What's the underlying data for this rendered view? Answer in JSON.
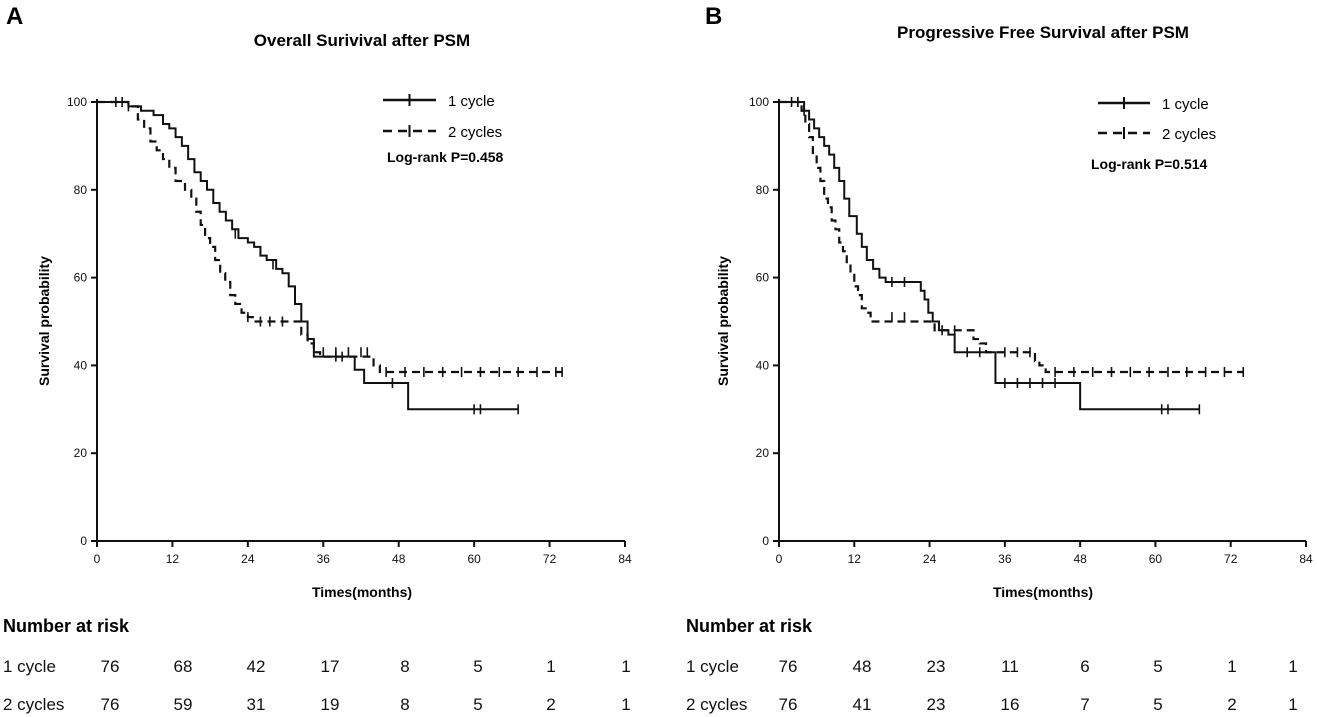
{
  "colors": {
    "line": "#111111",
    "background": "#ffffff"
  },
  "chart_data": [
    {
      "type": "line",
      "panel": "A",
      "title": "Overall Surivival after PSM",
      "xlabel": "Times(months)",
      "ylabel": "Survival probability",
      "xlim": [
        0,
        84
      ],
      "ylim": [
        0,
        100
      ],
      "xticks": [
        0,
        12,
        24,
        36,
        48,
        60,
        72,
        84
      ],
      "yticks": [
        0,
        20,
        40,
        60,
        80,
        100
      ],
      "legend_position": "top-right",
      "annotation": "Log-rank P=0.458",
      "series": [
        {
          "name": "1 cycle",
          "style": "solid",
          "steps": [
            [
              0,
              100
            ],
            [
              3,
              100
            ],
            [
              5,
              99
            ],
            [
              7,
              98
            ],
            [
              9,
              97
            ],
            [
              10.5,
              95
            ],
            [
              11.5,
              94
            ],
            [
              12.5,
              92
            ],
            [
              13.5,
              90
            ],
            [
              14.5,
              87
            ],
            [
              15.5,
              84
            ],
            [
              16.5,
              82
            ],
            [
              17.5,
              80
            ],
            [
              18.5,
              77
            ],
            [
              19.5,
              75
            ],
            [
              20.5,
              73
            ],
            [
              21.5,
              71
            ],
            [
              22.5,
              69
            ],
            [
              24,
              68
            ],
            [
              25,
              67
            ],
            [
              26,
              65
            ],
            [
              27,
              64
            ],
            [
              28.5,
              62
            ],
            [
              29.5,
              61
            ],
            [
              30.5,
              58
            ],
            [
              31.5,
              54
            ],
            [
              32.5,
              50
            ],
            [
              33.5,
              46
            ],
            [
              34.5,
              42
            ],
            [
              40,
              42
            ],
            [
              41,
              39
            ],
            [
              42.5,
              36
            ],
            [
              48.5,
              36
            ],
            [
              49.5,
              30
            ],
            [
              67,
              30
            ]
          ],
          "censored": [
            [
              3,
              100
            ],
            [
              5,
              99
            ],
            [
              22,
              70
            ],
            [
              26,
              66
            ],
            [
              28,
              63
            ],
            [
              38,
              42
            ],
            [
              39,
              42
            ],
            [
              47,
              36
            ],
            [
              60,
              30
            ],
            [
              61,
              30
            ],
            [
              67,
              30
            ]
          ]
        },
        {
          "name": "2 cycles",
          "style": "dashed",
          "steps": [
            [
              0,
              100
            ],
            [
              4,
              100
            ],
            [
              5,
              99
            ],
            [
              6.5,
              96
            ],
            [
              7.5,
              94
            ],
            [
              8.5,
              91
            ],
            [
              9.5,
              89
            ],
            [
              10.5,
              87
            ],
            [
              11.5,
              85
            ],
            [
              12.5,
              82
            ],
            [
              14,
              80
            ],
            [
              15,
              78
            ],
            [
              15.8,
              75
            ],
            [
              16.5,
              72
            ],
            [
              17.2,
              69
            ],
            [
              18,
              67
            ],
            [
              18.8,
              64
            ],
            [
              19.6,
              61
            ],
            [
              20.4,
              59
            ],
            [
              21.2,
              56
            ],
            [
              22,
              54
            ],
            [
              23,
              52
            ],
            [
              24,
              51
            ],
            [
              25,
              50
            ],
            [
              31,
              50
            ],
            [
              32.5,
              47
            ],
            [
              33.5,
              45
            ],
            [
              34.5,
              43
            ],
            [
              35.5,
              42
            ],
            [
              43,
              42
            ],
            [
              44,
              40
            ],
            [
              45,
              38.5
            ],
            [
              74,
              38.5
            ]
          ],
          "censored": [
            [
              4,
              100
            ],
            [
              24,
              51
            ],
            [
              26,
              50
            ],
            [
              27.5,
              50
            ],
            [
              29.5,
              50
            ],
            [
              36,
              43
            ],
            [
              38,
              43
            ],
            [
              40,
              43
            ],
            [
              42,
              43
            ],
            [
              43,
              43
            ],
            [
              46,
              38.5
            ],
            [
              49,
              38.5
            ],
            [
              52,
              38.5
            ],
            [
              55,
              38.5
            ],
            [
              58,
              38.5
            ],
            [
              61,
              38.5
            ],
            [
              64,
              38.5
            ],
            [
              67,
              38.5
            ],
            [
              70,
              38.5
            ],
            [
              73,
              38.5
            ],
            [
              74,
              38.5
            ]
          ]
        }
      ]
    },
    {
      "type": "line",
      "panel": "B",
      "title": "Progressive Free Survival after PSM",
      "xlabel": "Times(months)",
      "ylabel": "Survival probability",
      "xlim": [
        0,
        84
      ],
      "ylim": [
        0,
        100
      ],
      "xticks": [
        0,
        12,
        24,
        36,
        48,
        60,
        72,
        84
      ],
      "yticks": [
        0,
        20,
        40,
        60,
        80,
        100
      ],
      "legend_position": "top-right",
      "annotation": "Log-rank P=0.514",
      "series": [
        {
          "name": "1 cycle",
          "style": "solid",
          "steps": [
            [
              0,
              100
            ],
            [
              3,
              100
            ],
            [
              4,
              98
            ],
            [
              4.8,
              96
            ],
            [
              5.6,
              94
            ],
            [
              6.4,
              92
            ],
            [
              7.2,
              90
            ],
            [
              8,
              88
            ],
            [
              8.8,
              85
            ],
            [
              9.6,
              82
            ],
            [
              10.4,
              78
            ],
            [
              11.2,
              74
            ],
            [
              12.4,
              70
            ],
            [
              13.2,
              67
            ],
            [
              14,
              64
            ],
            [
              15,
              62
            ],
            [
              16,
              60
            ],
            [
              17,
              59
            ],
            [
              22,
              59
            ],
            [
              22.6,
              57
            ],
            [
              23.2,
              55
            ],
            [
              23.8,
              52
            ],
            [
              24.5,
              50
            ],
            [
              25.5,
              48
            ],
            [
              27,
              47
            ],
            [
              28,
              43
            ],
            [
              34,
              43
            ],
            [
              34.5,
              36
            ],
            [
              47.5,
              36
            ],
            [
              48,
              30
            ],
            [
              67,
              30
            ]
          ],
          "censored": [
            [
              3,
              100
            ],
            [
              4,
              98
            ],
            [
              18,
              59
            ],
            [
              20,
              59
            ],
            [
              30,
              43
            ],
            [
              32,
              43
            ],
            [
              36,
              36
            ],
            [
              38,
              36
            ],
            [
              40,
              36
            ],
            [
              42,
              36
            ],
            [
              44,
              36
            ],
            [
              61,
              30
            ],
            [
              62,
              30
            ],
            [
              67,
              30
            ]
          ]
        },
        {
          "name": "2 cycles",
          "style": "dashed",
          "steps": [
            [
              0,
              100
            ],
            [
              3,
              100
            ],
            [
              3.6,
              98
            ],
            [
              4.2,
              95
            ],
            [
              4.8,
              92
            ],
            [
              5.4,
              88
            ],
            [
              6,
              85
            ],
            [
              6.6,
              82
            ],
            [
              7.2,
              78
            ],
            [
              7.8,
              76
            ],
            [
              8.4,
              73
            ],
            [
              9,
              71
            ],
            [
              9.6,
              68
            ],
            [
              10.2,
              66
            ],
            [
              10.8,
              63
            ],
            [
              11.4,
              61
            ],
            [
              12,
              58
            ],
            [
              12.6,
              56
            ],
            [
              13.2,
              53
            ],
            [
              13.8,
              52
            ],
            [
              14.6,
              50
            ],
            [
              24,
              50
            ],
            [
              24.8,
              48
            ],
            [
              30,
              48
            ],
            [
              31,
              46
            ],
            [
              32,
              45
            ],
            [
              33,
              43
            ],
            [
              40,
              43
            ],
            [
              40.8,
              41
            ],
            [
              41.5,
              40
            ],
            [
              42.5,
              38.5
            ],
            [
              74,
              38.5
            ]
          ],
          "censored": [
            [
              2,
              100
            ],
            [
              3,
              100
            ],
            [
              18,
              51
            ],
            [
              20,
              51
            ],
            [
              26,
              48
            ],
            [
              28,
              48
            ],
            [
              36,
              43
            ],
            [
              38,
              43
            ],
            [
              40,
              43
            ],
            [
              44,
              38.5
            ],
            [
              47,
              38.5
            ],
            [
              50,
              38.5
            ],
            [
              53,
              38.5
            ],
            [
              56,
              38.5
            ],
            [
              59,
              38.5
            ],
            [
              62,
              38.5
            ],
            [
              65,
              38.5
            ],
            [
              68,
              38.5
            ],
            [
              71,
              38.5
            ],
            [
              74,
              38.5
            ]
          ]
        }
      ]
    }
  ],
  "risk_tables": [
    {
      "heading": "Number at risk",
      "rows": [
        {
          "label": "1 cycle",
          "values": [
            "76",
            "68",
            "42",
            "17",
            "8",
            "5",
            "1",
            "1"
          ]
        },
        {
          "label": "2 cycles",
          "values": [
            "76",
            "59",
            "31",
            "19",
            "8",
            "5",
            "2",
            "1"
          ]
        }
      ]
    },
    {
      "heading": "Number at risk",
      "rows": [
        {
          "label": "1 cycle",
          "values": [
            "76",
            "48",
            "23",
            "11",
            "6",
            "5",
            "1",
            "1"
          ]
        },
        {
          "label": "2 cycles",
          "values": [
            "76",
            "41",
            "23",
            "16",
            "7",
            "5",
            "2",
            "1"
          ]
        }
      ]
    }
  ]
}
